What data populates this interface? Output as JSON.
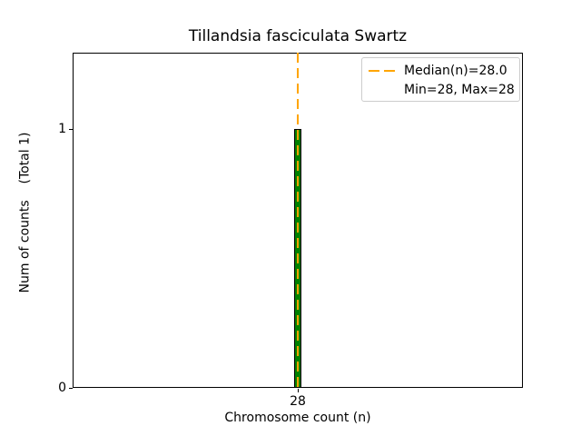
{
  "chart_data": {
    "type": "bar",
    "title": "Tillandsia fasciculata Swartz",
    "xlabel": "Chromosome count (n)",
    "ylabel": "Num of counts    (Total 1)",
    "x": [
      28
    ],
    "values": [
      1
    ],
    "total_count": 1,
    "bar_width": 0.018,
    "xlim": [
      27.5,
      28.5
    ],
    "ylim": [
      0,
      1.295
    ],
    "xticks": [
      28
    ],
    "yticks": [
      0,
      1
    ],
    "grid": false,
    "bar_color": "#008000",
    "bar_edge_color": "#000000",
    "median": {
      "value": 28.0,
      "line_color": "#FFA500",
      "line_style": "dashed"
    },
    "min": 28,
    "max": 28,
    "legend": {
      "position": "upper right",
      "entries": [
        {
          "label": "Median(n)=28.0",
          "swatch": "orange-dashed-line"
        },
        {
          "label": "Min=28, Max=28",
          "swatch": "none"
        }
      ]
    }
  }
}
